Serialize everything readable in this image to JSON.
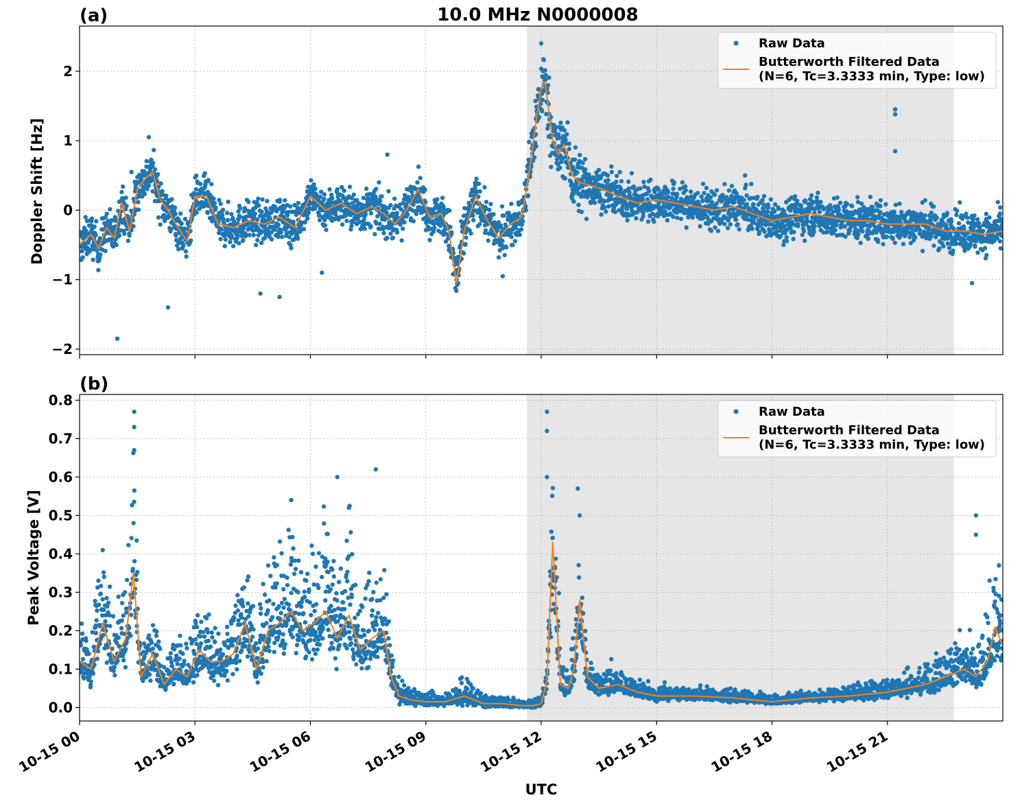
{
  "title": "10.0 MHz N0000008",
  "xlabel": "UTC",
  "legend": {
    "raw_label": "Raw Data",
    "filtered_label_line1": "Butterworth Filtered Data",
    "filtered_label_line2": "(N=6, Tc=3.3333 min, Type: low)",
    "placement": "top-right"
  },
  "colors": {
    "raw": "#1f77b4",
    "filtered": "#ff7f0e",
    "shade": "#e6e6e6",
    "grid": "#b0b0b0"
  },
  "chart_data": [
    {
      "type": "scatter",
      "panel_label": "(a)",
      "title": "10.0 MHz N0000008",
      "xlabel": "",
      "ylabel": "Doppler Shift [Hz]",
      "ylim": [
        -2.08,
        2.65
      ],
      "yticks": [
        -2,
        -1,
        0,
        1,
        2
      ],
      "ytick_labels": [
        "−2",
        "−1",
        "0",
        "1",
        "2"
      ],
      "xlim_hours": [
        0,
        24
      ],
      "xticks_hours": [
        0,
        3,
        6,
        9,
        12,
        15,
        18,
        21
      ],
      "xtick_labels": [
        "10-15 00",
        "10-15 03",
        "10-15 06",
        "10-15 09",
        "10-15 12",
        "10-15 15",
        "10-15 18",
        "10-15 21"
      ],
      "grid": true,
      "shaded_span_hours": [
        11.63,
        22.73
      ],
      "series": [
        {
          "name": "Butterworth Filtered Data",
          "type": "line",
          "x_hours": [
            0,
            0.3,
            0.5,
            0.7,
            0.9,
            1.1,
            1.3,
            1.5,
            1.7,
            1.9,
            2.1,
            2.3,
            2.5,
            2.8,
            3.0,
            3.3,
            3.6,
            4.0,
            4.4,
            4.8,
            5.2,
            5.6,
            6.0,
            6.4,
            6.8,
            7.2,
            7.6,
            7.9,
            8.2,
            8.5,
            8.8,
            9.1,
            9.4,
            9.6,
            9.8,
            10.0,
            10.3,
            10.6,
            10.9,
            11.2,
            11.5,
            11.7,
            11.9,
            12.0,
            12.1,
            12.3,
            12.45,
            12.6,
            12.8,
            13.0,
            13.3,
            13.6,
            14.0,
            14.5,
            15.0,
            15.5,
            16.0,
            16.5,
            17.0,
            17.5,
            18.0,
            18.5,
            19.0,
            19.5,
            20.0,
            20.5,
            21.0,
            21.5,
            22.0,
            22.5,
            23.0,
            23.5,
            24.0
          ],
          "values": [
            -0.5,
            -0.35,
            -0.55,
            -0.25,
            -0.4,
            0.1,
            -0.3,
            0.3,
            0.45,
            0.55,
            0.15,
            0.0,
            -0.2,
            -0.45,
            0.2,
            0.2,
            -0.2,
            -0.25,
            -0.15,
            -0.2,
            -0.1,
            -0.25,
            0.2,
            0.0,
            0.1,
            -0.05,
            0.05,
            -0.05,
            -0.2,
            0.0,
            0.3,
            -0.1,
            -0.05,
            -0.3,
            -1.05,
            -0.3,
            0.2,
            -0.15,
            -0.4,
            -0.2,
            -0.1,
            0.6,
            1.4,
            1.75,
            1.85,
            1.0,
            0.8,
            0.95,
            0.5,
            0.4,
            0.35,
            0.3,
            0.2,
            0.1,
            0.15,
            0.1,
            0.05,
            0.0,
            0.05,
            -0.05,
            -0.15,
            -0.1,
            -0.05,
            -0.1,
            -0.15,
            -0.15,
            -0.2,
            -0.2,
            -0.2,
            -0.3,
            -0.3,
            -0.35,
            -0.3
          ]
        },
        {
          "name": "Raw Data",
          "type": "scatter",
          "outliers": [
            [
              0.98,
              -1.85
            ],
            [
              1.35,
              0.55
            ],
            [
              1.8,
              1.05
            ],
            [
              2.3,
              -1.4
            ],
            [
              4.7,
              -1.2
            ],
            [
              5.2,
              -1.25
            ],
            [
              6.3,
              -0.9
            ],
            [
              8.0,
              0.8
            ],
            [
              11.0,
              -0.95
            ],
            [
              12.0,
              2.4
            ],
            [
              17.3,
              0.5
            ],
            [
              18.3,
              -0.5
            ],
            [
              21.2,
              1.45
            ],
            [
              21.2,
              1.38
            ],
            [
              21.2,
              0.85
            ],
            [
              23.2,
              -1.05
            ]
          ]
        }
      ]
    },
    {
      "type": "scatter",
      "panel_label": "(b)",
      "title": "",
      "xlabel": "UTC",
      "ylabel": "Peak Voltage [V]",
      "ylim": [
        -0.035,
        0.815
      ],
      "yticks": [
        0.0,
        0.1,
        0.2,
        0.3,
        0.4,
        0.5,
        0.6,
        0.7,
        0.8
      ],
      "ytick_labels": [
        "0.0",
        "0.1",
        "0.2",
        "0.3",
        "0.4",
        "0.5",
        "0.6",
        "0.7",
        "0.8"
      ],
      "xlim_hours": [
        0,
        24
      ],
      "xticks_hours": [
        0,
        3,
        6,
        9,
        12,
        15,
        18,
        21
      ],
      "xtick_labels": [
        "10-15 00",
        "10-15 03",
        "10-15 06",
        "10-15 09",
        "10-15 12",
        "10-15 15",
        "10-15 18",
        "10-15 21"
      ],
      "grid": true,
      "shaded_span_hours": [
        11.63,
        22.73
      ],
      "series": [
        {
          "name": "Butterworth Filtered Data",
          "type": "line",
          "x_hours": [
            0,
            0.3,
            0.6,
            0.9,
            1.2,
            1.4,
            1.6,
            1.9,
            2.2,
            2.5,
            2.8,
            3.1,
            3.4,
            3.7,
            4.0,
            4.3,
            4.6,
            4.9,
            5.2,
            5.5,
            5.8,
            6.1,
            6.4,
            6.7,
            7.0,
            7.3,
            7.6,
            7.9,
            8.1,
            8.3,
            8.6,
            9.0,
            9.5,
            10.0,
            10.5,
            11.0,
            11.5,
            11.8,
            12.0,
            12.15,
            12.3,
            12.5,
            12.7,
            12.85,
            13.0,
            13.2,
            13.5,
            14.0,
            14.5,
            15.0,
            16.0,
            17.0,
            18.0,
            19.0,
            20.0,
            21.0,
            21.5,
            22.0,
            22.5,
            23.0,
            23.3,
            23.6,
            23.8,
            24.0
          ],
          "values": [
            0.12,
            0.1,
            0.22,
            0.12,
            0.18,
            0.35,
            0.08,
            0.14,
            0.06,
            0.1,
            0.08,
            0.15,
            0.12,
            0.12,
            0.14,
            0.22,
            0.1,
            0.2,
            0.22,
            0.25,
            0.2,
            0.22,
            0.25,
            0.18,
            0.24,
            0.15,
            0.18,
            0.2,
            0.08,
            0.03,
            0.02,
            0.015,
            0.015,
            0.03,
            0.01,
            0.01,
            0.005,
            0.005,
            0.01,
            0.07,
            0.43,
            0.06,
            0.05,
            0.1,
            0.28,
            0.08,
            0.05,
            0.06,
            0.04,
            0.03,
            0.03,
            0.025,
            0.015,
            0.025,
            0.03,
            0.04,
            0.05,
            0.06,
            0.08,
            0.1,
            0.08,
            0.12,
            0.21,
            0.16
          ]
        },
        {
          "name": "Raw Data",
          "type": "scatter",
          "outliers": [
            [
              1.42,
              0.77
            ],
            [
              1.42,
              0.73
            ],
            [
              1.42,
              0.67
            ],
            [
              0.6,
              0.41
            ],
            [
              6.7,
              0.6
            ],
            [
              7.7,
              0.62
            ],
            [
              5.5,
              0.54
            ],
            [
              7.0,
              0.52
            ],
            [
              12.15,
              0.77
            ],
            [
              12.15,
              0.72
            ],
            [
              12.15,
              0.6
            ],
            [
              12.95,
              0.57
            ],
            [
              13.0,
              0.5
            ],
            [
              23.3,
              0.5
            ],
            [
              23.3,
              0.45
            ],
            [
              23.9,
              0.37
            ]
          ]
        }
      ]
    }
  ]
}
